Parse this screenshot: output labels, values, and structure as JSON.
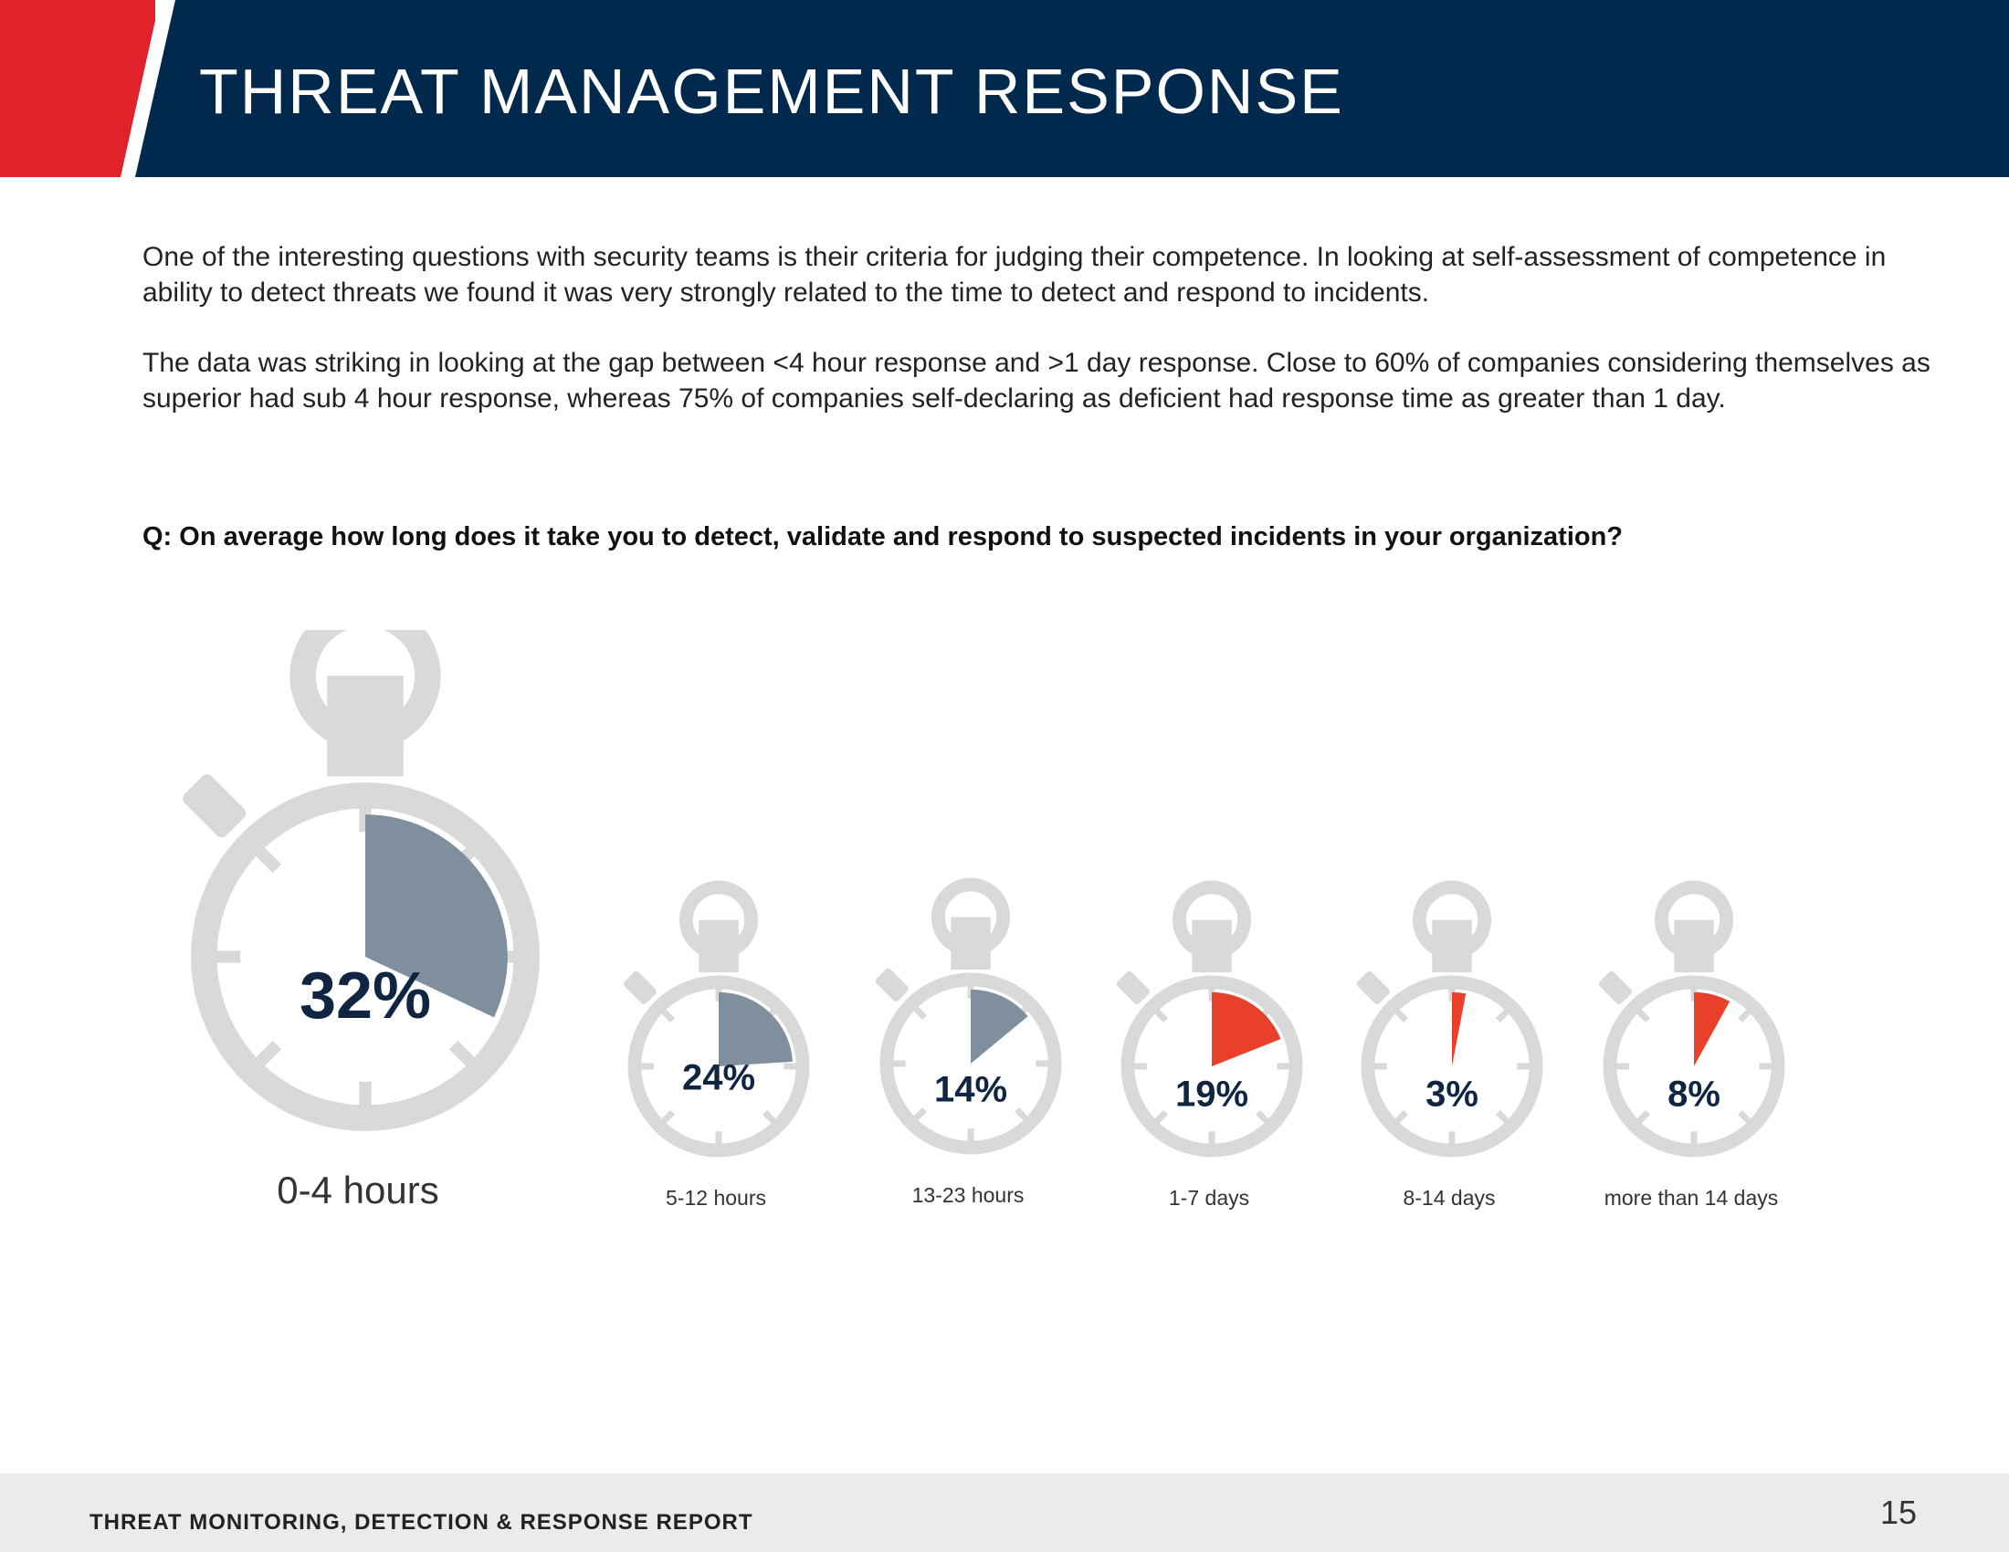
{
  "header": {
    "title": "THREAT MANAGEMENT RESPONSE"
  },
  "intro": {
    "paragraph1": "One of the interesting questions with security teams is their criteria for judging their competence. In looking at self-assessment of competence in ability to detect threats we found it was very strongly related to the time to detect and respond to incidents.",
    "paragraph2": "The data was striking in looking at the gap between <4 hour response and >1 day response. Close to 60% of companies considering themselves as superior had sub 4 hour response, whereas 75% of companies self-declaring as deficient had response time as greater than 1 day."
  },
  "question": "Q: On average how long does it take you to detect, validate and respond to suspected incidents in your organization?",
  "chart_data": {
    "type": "pie",
    "title": "Q: On average how long does it take you to detect, validate and respond to suspected incidents in your organization?",
    "categories": [
      "0-4 hours",
      "5-12 hours",
      "13-23 hours",
      "1-7 days",
      "8-14 days",
      "more than 14 days"
    ],
    "values": [
      32,
      24,
      14,
      19,
      3,
      8
    ],
    "value_labels": [
      "32%",
      "24%",
      "14%",
      "19%",
      "3%",
      "8%"
    ],
    "unit": "%",
    "colors": [
      "#7f8f9e",
      "#7f8f9e",
      "#7f8f9e",
      "#e8402a",
      "#e8402a",
      "#e8402a"
    ]
  },
  "colors": {
    "navy": "#00294d",
    "red": "#e0232b",
    "watch_gray": "#d9d9d9",
    "hours_fill": "#7f8f9e",
    "days_fill": "#e8402a",
    "label_navy": "#0f2542"
  },
  "footer": {
    "title": "THREAT MONITORING, DETECTION & RESPONSE REPORT",
    "page_number": "15"
  }
}
